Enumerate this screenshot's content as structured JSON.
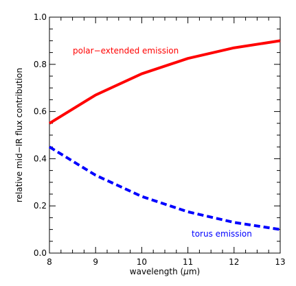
{
  "chart_data": {
    "type": "line",
    "xlabel": "wavelength (μm)",
    "ylabel": "relative mid−IR flux contribution",
    "xlim": [
      8,
      13
    ],
    "ylim": [
      0.0,
      1.0
    ],
    "x_ticks": [
      "8",
      "9",
      "10",
      "11",
      "12",
      "13"
    ],
    "y_ticks": [
      "0.0",
      "0.2",
      "0.4",
      "0.6",
      "0.8",
      "1.0"
    ],
    "grid": false,
    "x": [
      8,
      9,
      10,
      11,
      12,
      13
    ],
    "series": [
      {
        "name": "polar−extended emission",
        "values": [
          0.55,
          0.67,
          0.76,
          0.825,
          0.87,
          0.9
        ],
        "color": "#ff0000",
        "style": "solid"
      },
      {
        "name": "torus emission",
        "values": [
          0.45,
          0.33,
          0.24,
          0.175,
          0.13,
          0.1
        ],
        "color": "#0000ff",
        "style": "dashed"
      }
    ],
    "annotations": [
      {
        "text": "polar−extended emission",
        "color": "#ff0000",
        "near_x": 9.4,
        "near_y": 0.88
      },
      {
        "text": "torus emission",
        "color": "#0000ff",
        "near_x": 11.9,
        "near_y": 0.08
      }
    ]
  }
}
